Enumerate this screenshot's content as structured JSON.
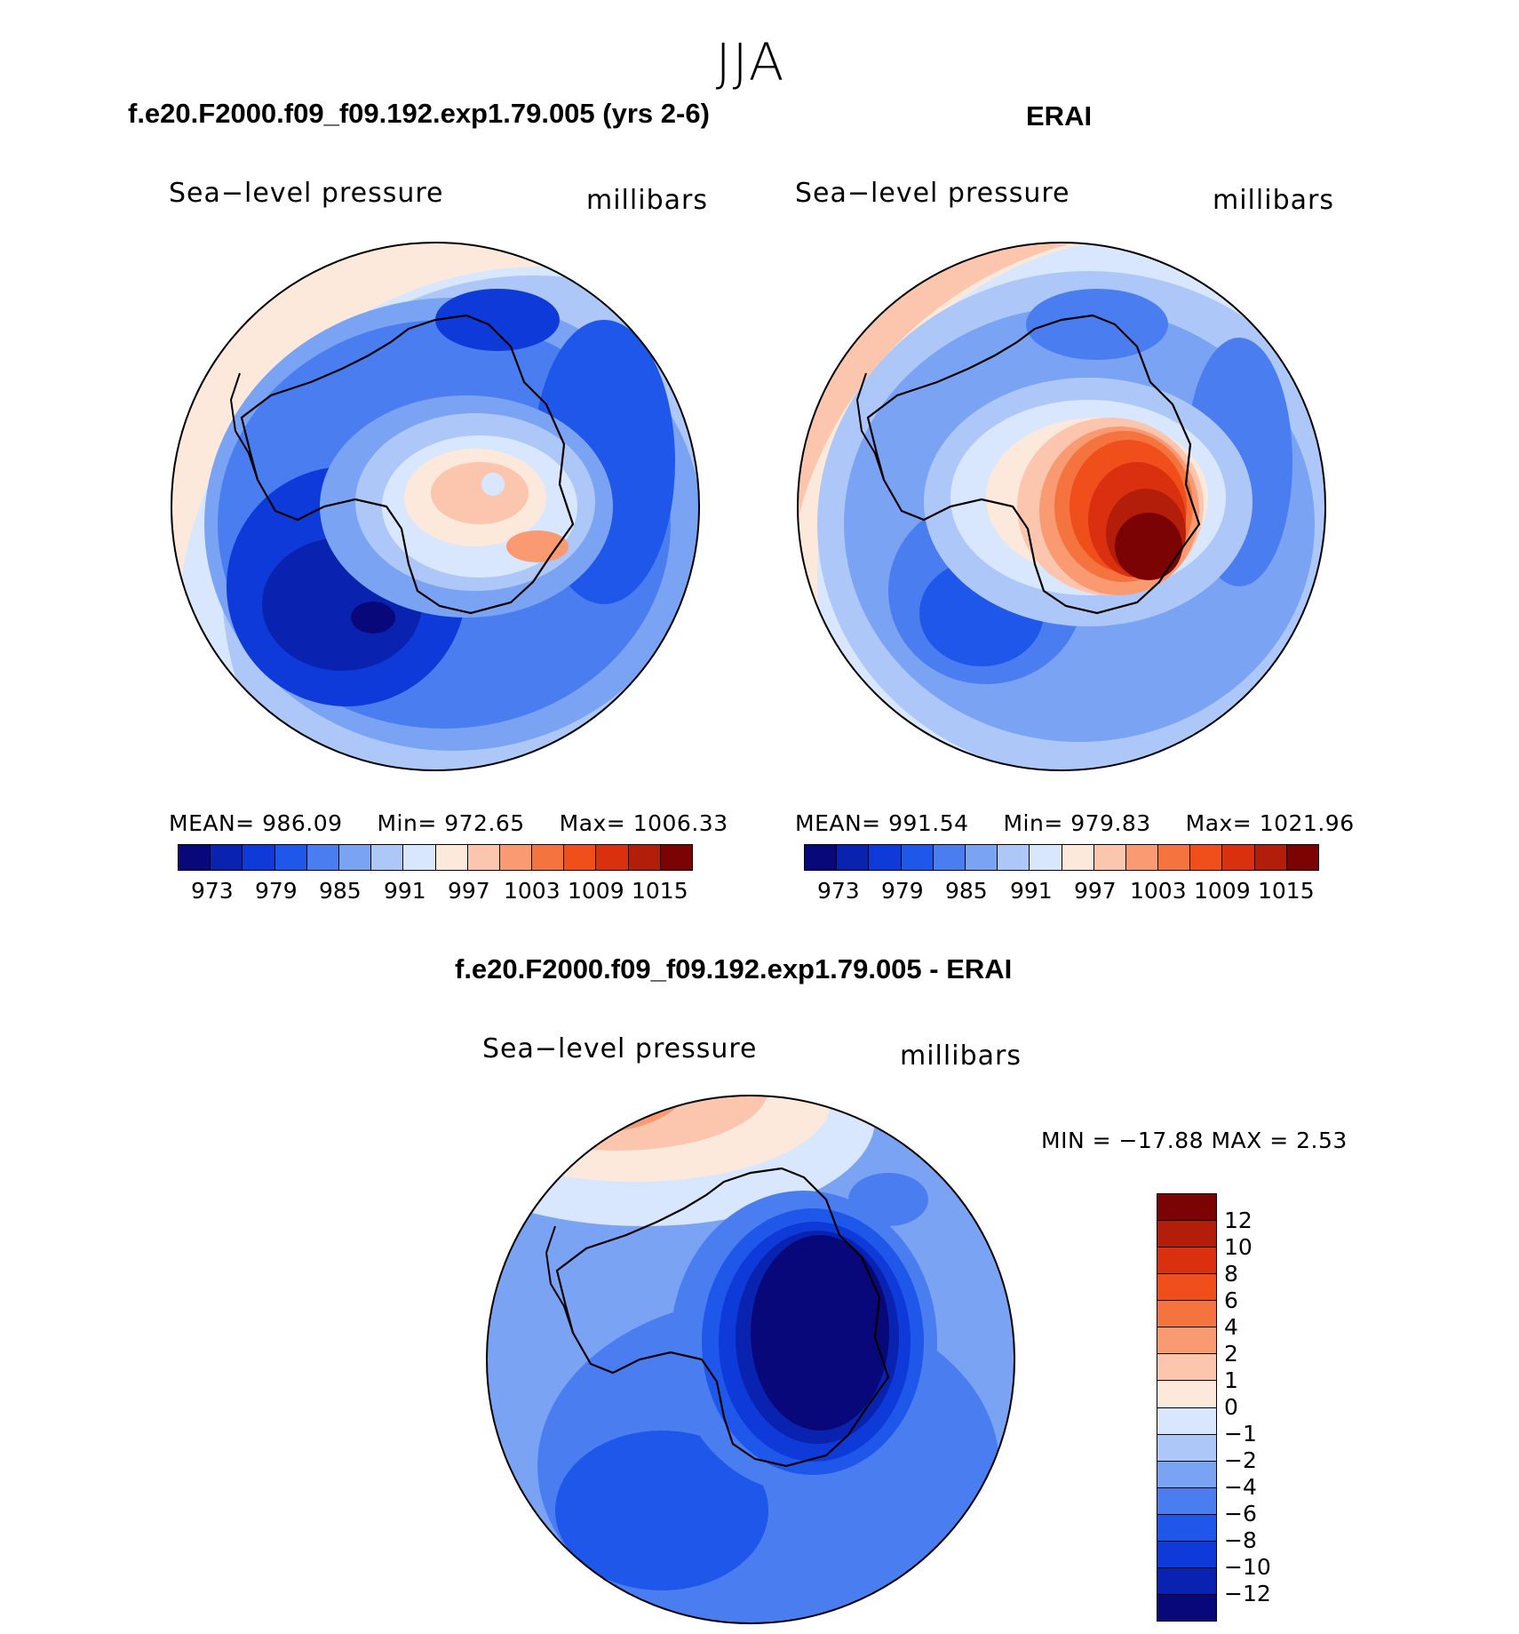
{
  "season": "JJA",
  "chart_data": [
    {
      "type": "heatmap",
      "title": "f.e20.F2000.f09_f09.192.exp1.79.005 (yrs 2-6)",
      "variable": "Sea−level pressure",
      "units": "millibars",
      "projection": "south-polar stereographic",
      "stats": {
        "mean_label": "MEAN=",
        "mean": "986.09",
        "min_label": "Min=",
        "min": "972.65",
        "max_label": "Max=",
        "max": "1006.33"
      },
      "levels": [
        973,
        976,
        979,
        982,
        985,
        988,
        991,
        994,
        997,
        1000,
        1003,
        1006,
        1009,
        1012,
        1015
      ],
      "tick_labels": [
        "973",
        "979",
        "985",
        "991",
        "997",
        "1003",
        "1009",
        "1015"
      ]
    },
    {
      "type": "heatmap",
      "title": "ERAI",
      "variable": "Sea−level pressure",
      "units": "millibars",
      "projection": "south-polar stereographic",
      "stats": {
        "mean_label": "MEAN=",
        "mean": "991.54",
        "min_label": "Min=",
        "min": "979.83",
        "max_label": "Max=",
        "max": "1021.96"
      },
      "levels": [
        973,
        976,
        979,
        982,
        985,
        988,
        991,
        994,
        997,
        1000,
        1003,
        1006,
        1009,
        1012,
        1015
      ],
      "tick_labels": [
        "973",
        "979",
        "985",
        "991",
        "997",
        "1003",
        "1009",
        "1015"
      ]
    },
    {
      "type": "heatmap",
      "title": "f.e20.F2000.f09_f09.192.exp1.79.005 - ERAI",
      "variable": "Sea−level pressure",
      "units": "millibars",
      "projection": "south-polar stereographic",
      "stats_text": "MIN = −17.88 MAX =    2.53",
      "levels": [
        -12,
        -10,
        -8,
        -6,
        -4,
        -2,
        -1,
        0,
        1,
        2,
        4,
        6,
        8,
        10,
        12
      ],
      "tick_labels": [
        "12",
        "10",
        "8",
        "6",
        "4",
        "2",
        "1",
        "0",
        "−1",
        "−2",
        "−4",
        "−6",
        "−8",
        "−10",
        "−12"
      ]
    }
  ],
  "colors": {
    "palette": [
      "#08087a",
      "#0a22b0",
      "#0d3ad9",
      "#1f57eb",
      "#4a7ef0",
      "#7ba3f4",
      "#adc7f8",
      "#d8e7fd",
      "#fde9dc",
      "#fcc6ae",
      "#f99a73",
      "#f5733f",
      "#f04f1c",
      "#da3010",
      "#b21e0a",
      "#7c0303"
    ],
    "coastline": "#000000"
  }
}
